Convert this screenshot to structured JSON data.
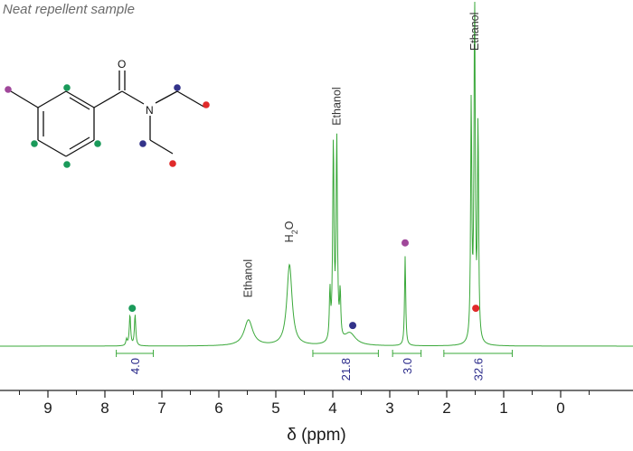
{
  "colors": {
    "spectrum": "#3aa83a",
    "axis": "#222222",
    "integral_text": "#2a2a8a",
    "methyl_ar": "#a0479a",
    "aromatic": "#1a9a5a",
    "ch2": "#33338a",
    "ch3": "#e02a2a"
  },
  "chart_data": {
    "type": "line",
    "title": "Neat repellent sample",
    "xlabel": "δ (ppm)",
    "xlim": [
      9.7,
      -0.1
    ],
    "x_ticks": [
      9,
      8,
      7,
      6,
      5,
      4,
      3,
      2,
      1,
      0
    ],
    "reversed_x": true,
    "grid": false,
    "peaks": [
      {
        "shift": 7.62,
        "height": 0.018,
        "width": 0.014
      },
      {
        "shift": 7.56,
        "height": 0.09,
        "width": 0.014
      },
      {
        "shift": 7.47,
        "height": 0.09,
        "width": 0.014
      },
      {
        "shift": 5.48,
        "height": 0.075,
        "width": 0.09
      },
      {
        "shift": 4.76,
        "height": 0.235,
        "width": 0.055
      },
      {
        "shift": 4.05,
        "height": 0.14,
        "width": 0.012
      },
      {
        "shift": 3.99,
        "height": 0.57,
        "width": 0.014
      },
      {
        "shift": 3.93,
        "height": 0.58,
        "width": 0.014
      },
      {
        "shift": 3.87,
        "height": 0.13,
        "width": 0.012
      },
      {
        "shift": 3.7,
        "height": 0.035,
        "width": 0.12
      },
      {
        "shift": 2.73,
        "height": 0.26,
        "width": 0.012
      },
      {
        "shift": 1.57,
        "height": 0.69,
        "width": 0.012
      },
      {
        "shift": 1.51,
        "height": 1.0,
        "width": 0.013
      },
      {
        "shift": 1.45,
        "height": 0.63,
        "width": 0.012
      }
    ],
    "peak_labels": [
      {
        "text": "Ethanol",
        "shift": 5.48,
        "level": 0.12
      },
      {
        "text": "H2O",
        "shift": 4.76,
        "level": 0.28
      },
      {
        "text": "Ethanol",
        "shift": 3.93,
        "level": 0.62
      },
      {
        "text": "Ethanol",
        "shift": 1.51,
        "level": 1.0
      }
    ],
    "integrals": [
      {
        "value": "4.0",
        "from": 7.8,
        "to": 7.15
      },
      {
        "value": "21.8",
        "from": 4.35,
        "to": 3.2
      },
      {
        "value": "3.0",
        "from": 2.95,
        "to": 2.45
      },
      {
        "value": "32.6",
        "from": 2.05,
        "to": 0.85
      }
    ],
    "peak_markers": [
      {
        "group": "aromatic",
        "shift": 7.52,
        "level": 0.11
      },
      {
        "group": "ch2",
        "shift": 3.65,
        "level": 0.06
      },
      {
        "group": "methyl_ar",
        "shift": 2.73,
        "level": 0.3
      },
      {
        "group": "ch3",
        "shift": 1.49,
        "level": 0.11
      }
    ]
  },
  "molecule": {
    "atom_labels": {
      "oxygen": "O",
      "nitrogen": "N"
    }
  }
}
